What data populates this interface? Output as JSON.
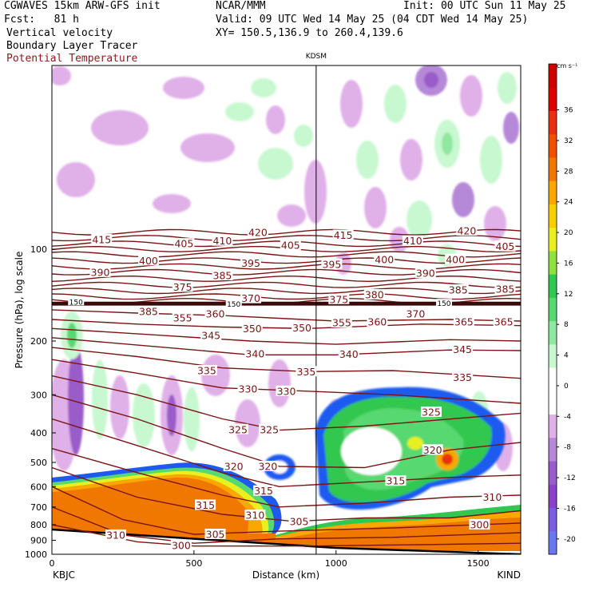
{
  "header": {
    "title": "CGWAVES 15km ARW-GFS init",
    "fcst": "Fcst:   81 h",
    "center": "NCAR/MMM",
    "init": "Init: 00 UTC Sun 11 May 25",
    "valid": "Valid: 09 UTC Wed 14 May 25 (04 CDT Wed 14 May 25)",
    "xy": "XY= 150.5,136.9 to 260.4,139.6",
    "fields": [
      "Vertical velocity",
      "Boundary Layer Tracer",
      "Potential Temperature"
    ]
  },
  "colors": {
    "theta": "#7a1414",
    "tropopause": "#3a0a0a",
    "terrain": "#000000",
    "colorbar": [
      "#6a78f0",
      "#7c5ce0",
      "#8a42c8",
      "#9a5cc8",
      "#b688d8",
      "#e0b0e8",
      "#ffffff",
      "#ffffff",
      "#c8f8d0",
      "#90e8a0",
      "#58d870",
      "#30c850",
      "#90e040",
      "#e8f020",
      "#f8d000",
      "#f8a800",
      "#f07800",
      "#f05000",
      "#e83010",
      "#e00000",
      "#d00000"
    ]
  },
  "chart_data": {
    "type": "heatmap",
    "title": "KDSM",
    "xlabel": "Distance (km)",
    "ylabel": "Pressure (hPa), log scale",
    "xlim": [
      0,
      1650
    ],
    "ylim": [
      1000,
      25
    ],
    "y_scale": "log",
    "x_ticks": [
      0,
      500,
      1000,
      1500
    ],
    "x_tick_labels": [
      "0",
      "500",
      "1000",
      "1500"
    ],
    "y_ticks": [
      100,
      200,
      300,
      400,
      500,
      600,
      700,
      800,
      900,
      1000
    ],
    "y_tick_labels": [
      "100",
      "200",
      "300",
      "400",
      "500",
      "600",
      "700",
      "800",
      "900",
      "1000"
    ],
    "endpoint_left": "KBJC",
    "endpoint_right": "KIND",
    "station_marker": {
      "label": "KDSM",
      "x": 930
    },
    "colorbar": {
      "unit": "cm s⁻¹",
      "ticks": [
        36,
        32,
        28,
        24,
        20,
        16,
        12,
        8,
        4,
        0,
        -4,
        -8,
        -12,
        -16,
        -20
      ],
      "range": [
        -22,
        42
      ]
    },
    "theta_labels": [
      {
        "text": "420",
        "x": 725,
        "p": 88
      },
      {
        "text": "415",
        "x": 175,
        "p": 93
      },
      {
        "text": "405",
        "x": 465,
        "p": 96
      },
      {
        "text": "410",
        "x": 600,
        "p": 94
      },
      {
        "text": "405",
        "x": 840,
        "p": 97
      },
      {
        "text": "415",
        "x": 1025,
        "p": 90
      },
      {
        "text": "410",
        "x": 1270,
        "p": 94
      },
      {
        "text": "420",
        "x": 1460,
        "p": 87
      },
      {
        "text": "405",
        "x": 1595,
        "p": 98
      },
      {
        "text": "390",
        "x": 170,
        "p": 119
      },
      {
        "text": "400",
        "x": 340,
        "p": 109
      },
      {
        "text": "395",
        "x": 700,
        "p": 111
      },
      {
        "text": "395",
        "x": 985,
        "p": 112
      },
      {
        "text": "400",
        "x": 1170,
        "p": 108
      },
      {
        "text": "390",
        "x": 1315,
        "p": 120
      },
      {
        "text": "400",
        "x": 1420,
        "p": 108
      },
      {
        "text": "405",
        "x": 1595,
        "p": 98
      },
      {
        "text": "375",
        "x": 460,
        "p": 133
      },
      {
        "text": "385",
        "x": 600,
        "p": 122
      },
      {
        "text": "370",
        "x": 700,
        "p": 145
      },
      {
        "text": "375",
        "x": 1010,
        "p": 146
      },
      {
        "text": "380",
        "x": 1135,
        "p": 141
      },
      {
        "text": "385",
        "x": 1430,
        "p": 136
      },
      {
        "text": "385",
        "x": 1595,
        "p": 135
      },
      {
        "text": "385",
        "x": 340,
        "p": 160
      },
      {
        "text": "355",
        "x": 460,
        "p": 168
      },
      {
        "text": "360",
        "x": 575,
        "p": 163
      },
      {
        "text": "355",
        "x": 1020,
        "p": 174
      },
      {
        "text": "360",
        "x": 1145,
        "p": 173
      },
      {
        "text": "370",
        "x": 1280,
        "p": 163
      },
      {
        "text": "365",
        "x": 1450,
        "p": 173
      },
      {
        "text": "365",
        "x": 1590,
        "p": 173
      },
      {
        "text": "345",
        "x": 560,
        "p": 192
      },
      {
        "text": "350",
        "x": 705,
        "p": 182
      },
      {
        "text": "350",
        "x": 880,
        "p": 181
      },
      {
        "text": "340",
        "x": 715,
        "p": 220
      },
      {
        "text": "340",
        "x": 1045,
        "p": 221
      },
      {
        "text": "345",
        "x": 1445,
        "p": 213
      },
      {
        "text": "335",
        "x": 545,
        "p": 250
      },
      {
        "text": "335",
        "x": 895,
        "p": 252
      },
      {
        "text": "335",
        "x": 1445,
        "p": 263
      },
      {
        "text": "330",
        "x": 690,
        "p": 287
      },
      {
        "text": "330",
        "x": 825,
        "p": 292
      },
      {
        "text": "325",
        "x": 1335,
        "p": 342
      },
      {
        "text": "325",
        "x": 655,
        "p": 390
      },
      {
        "text": "325",
        "x": 765,
        "p": 390
      },
      {
        "text": "320",
        "x": 1340,
        "p": 455
      },
      {
        "text": "320",
        "x": 640,
        "p": 515
      },
      {
        "text": "320",
        "x": 760,
        "p": 515
      },
      {
        "text": "315",
        "x": 1210,
        "p": 575
      },
      {
        "text": "315",
        "x": 745,
        "p": 620
      },
      {
        "text": "315",
        "x": 540,
        "p": 690
      },
      {
        "text": "310",
        "x": 1550,
        "p": 650
      },
      {
        "text": "310",
        "x": 715,
        "p": 745
      },
      {
        "text": "305",
        "x": 870,
        "p": 780
      },
      {
        "text": "300",
        "x": 1505,
        "p": 800
      },
      {
        "text": "310",
        "x": 225,
        "p": 865
      },
      {
        "text": "305",
        "x": 575,
        "p": 860
      },
      {
        "text": "300",
        "x": 455,
        "p": 935
      }
    ],
    "tropopause_labels": [
      {
        "text": "150",
        "x": 85,
        "p": 149
      },
      {
        "text": "150",
        "x": 640,
        "p": 151
      },
      {
        "text": "150",
        "x": 1380,
        "p": 150
      }
    ]
  }
}
